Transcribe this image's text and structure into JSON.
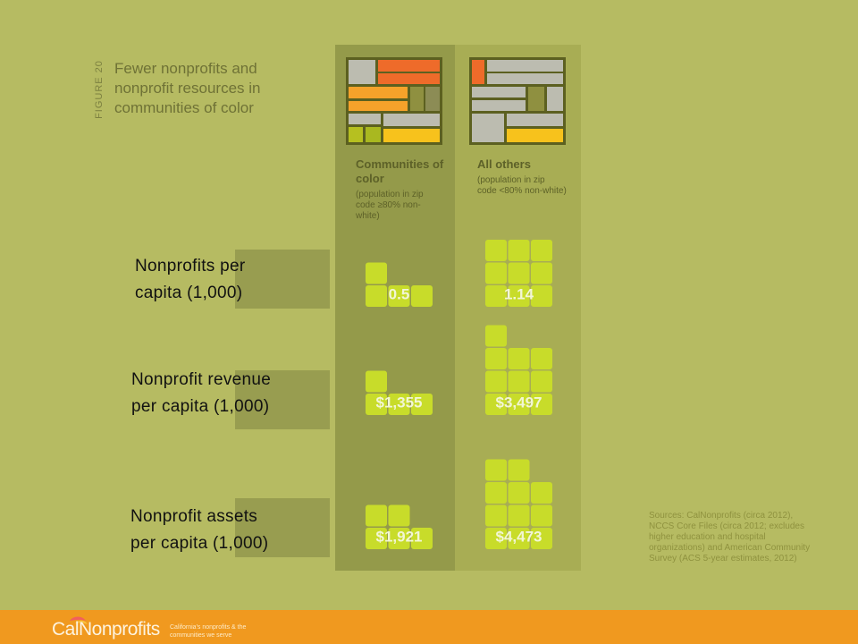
{
  "figure": {
    "label": "FIGURE 20",
    "title": "Fewer nonprofits and nonprofit resources in communities of color"
  },
  "columns": {
    "left": {
      "heading": "Communities of color",
      "subheading": "(population in zip code ≥80% non-white)"
    },
    "right": {
      "heading": "All others",
      "subheading": "(population in zip code <80% non-white)"
    }
  },
  "chart_data": {
    "type": "bar",
    "categories": [
      "Nonprofits per capita (1,000)",
      "Nonprofit revenue per capita (1,000)",
      "Nonprofit assets per capita (1,000)"
    ],
    "series": [
      {
        "name": "Communities of color",
        "values": [
          0.5,
          1355,
          1921
        ],
        "labels": [
          "0.5",
          "$1,355",
          "$1,921"
        ]
      },
      {
        "name": "All others",
        "values": [
          1.14,
          3497,
          4473
        ],
        "labels": [
          "1.14",
          "$3,497",
          "$4,473"
        ]
      }
    ],
    "colors": {
      "tile": "#c8dc2a",
      "value_text": "#f2f6d6"
    }
  },
  "rows": [
    {
      "line1": "Nonprofits per",
      "line2": "capita (1,000)"
    },
    {
      "line1": "Nonprofit revenue",
      "line2": "per capita (1,000)"
    },
    {
      "line1": "Nonprofit assets",
      "line2": "per capita (1,000)"
    }
  ],
  "sources": "Sources: CalNonprofits (circa 2012), NCCS Core Files (circa 2012; excludes higher education and hospital organizations) and American Community Survey (ACS 5-year estimates, 2012)",
  "footer": {
    "brand": "CalNonprofits",
    "tagline": "California's nonprofits & the communities we serve"
  },
  "colors": {
    "background": "#b6bb62",
    "footer": "#f0991f"
  }
}
